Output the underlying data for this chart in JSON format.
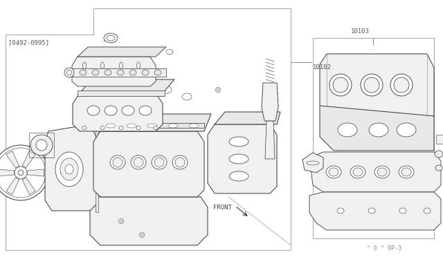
{
  "bg_color": "#ffffff",
  "line_color": "#333333",
  "thin_line": 0.5,
  "med_line": 0.8,
  "thick_line": 1.0,
  "label_date": "[0492-0995]",
  "label_10102": "10102",
  "label_10103": "10103",
  "label_front": "FRONT",
  "label_bottom": "^ 0 ^ 0P-3",
  "font_size": 7
}
